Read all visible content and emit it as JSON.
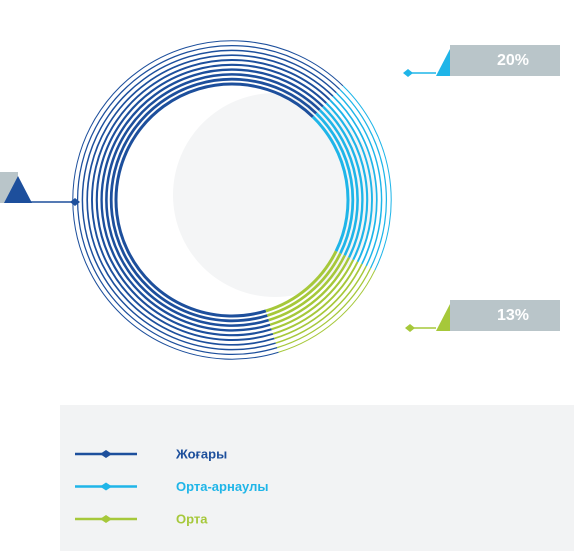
{
  "chart_data": {
    "type": "pie",
    "categories": [
      "Жоғары",
      "Орта-арнаулы",
      "Орта"
    ],
    "values": [
      67,
      20,
      13
    ],
    "value_labels": [
      null,
      "20%",
      "13%"
    ],
    "colors": [
      "#1d4f9c",
      "#1fb5e8",
      "#a6c83a"
    ]
  }
}
